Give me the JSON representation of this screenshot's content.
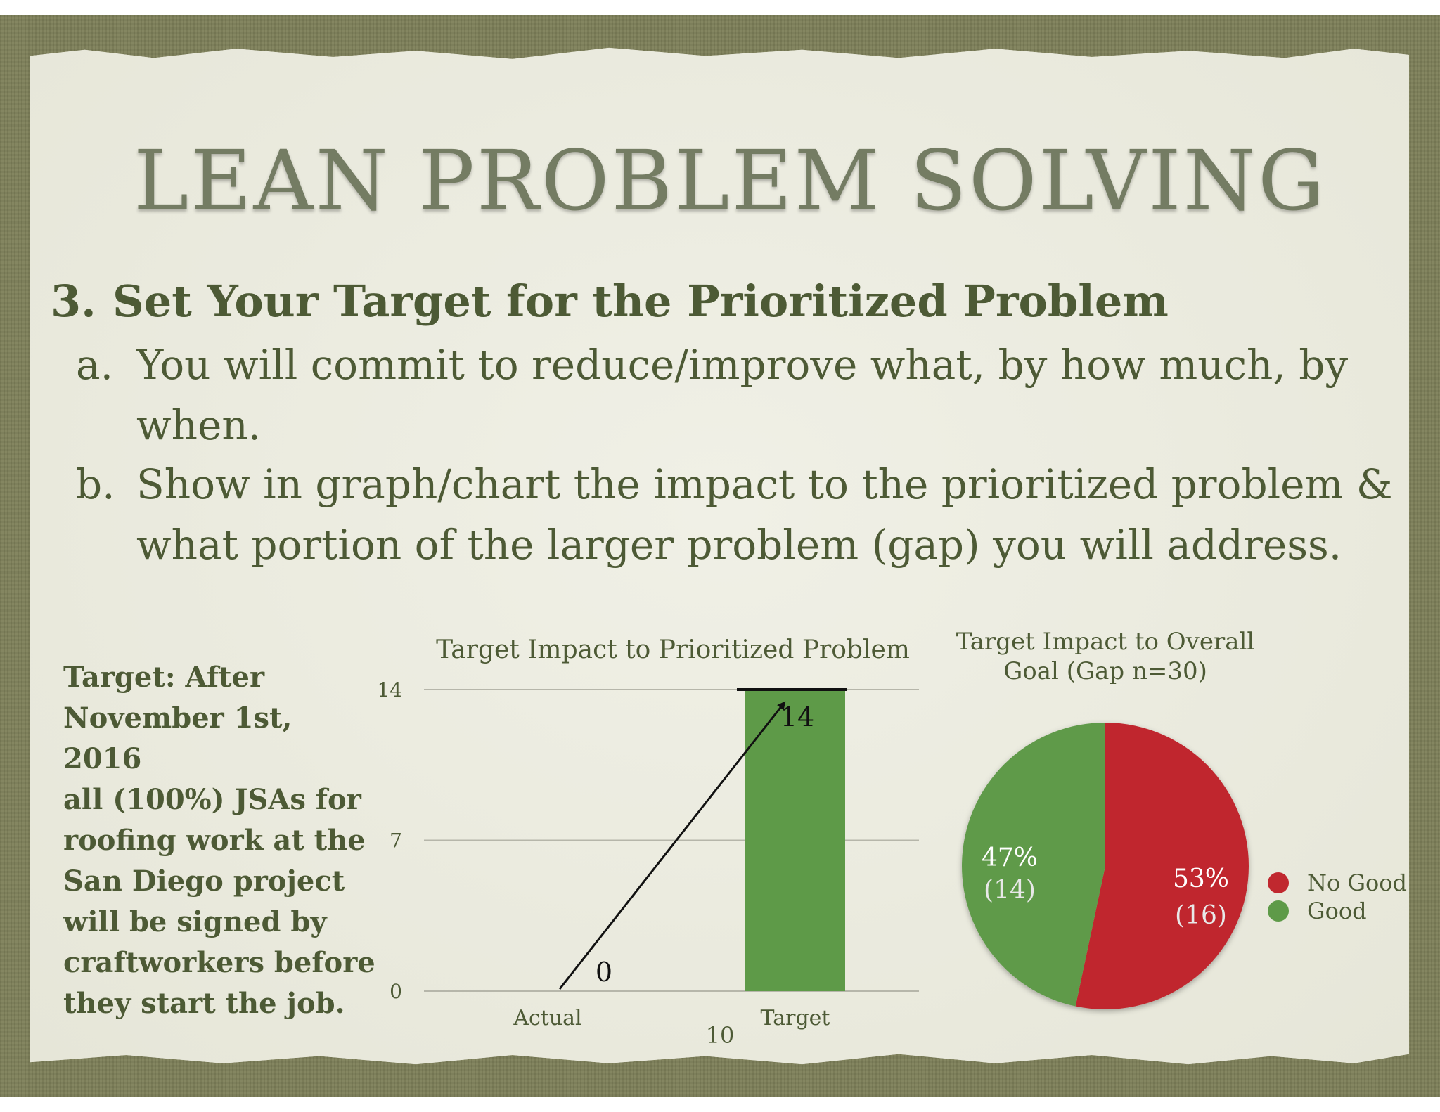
{
  "slide": {
    "title": "LEAN PROBLEM SOLVING",
    "heading_number": "3.",
    "heading_text": "Set Your Target for the Prioritized Problem",
    "items": [
      {
        "label": "a.",
        "line1": "You will commit to reduce/improve what, by how much, by",
        "line2": "when."
      },
      {
        "label": "b.",
        "line1": "Show in graph/chart the impact to the prioritized problem &",
        "line2": "what portion of the larger problem (gap) you will address."
      }
    ],
    "target_lines": [
      "Target:  After",
      "November 1st, 2016",
      "all (100%) JSAs for",
      "roofing work at the",
      "San Diego project",
      "will be signed by",
      "craftworkers before",
      "they start the job."
    ],
    "page_number": "10"
  },
  "chart_data": [
    {
      "type": "bar",
      "title": "Target Impact to Prioritized Problem",
      "categories": [
        "Actual",
        "Target"
      ],
      "values": [
        0,
        14
      ],
      "data_labels": [
        "0",
        "14"
      ],
      "ylim": [
        0,
        14
      ],
      "yticks": [
        "0",
        "7",
        "14"
      ],
      "grid": true,
      "bar_color": "#5e9a48",
      "annotation": "arrow from Actual value rising to Target value"
    },
    {
      "type": "pie",
      "title_lines": [
        "Target Impact to Overall",
        "Goal (Gap n=30)"
      ],
      "slices": [
        {
          "name": "No Good",
          "value": 16,
          "percent": "53%",
          "count_label": "(16)",
          "color": "#c0282f"
        },
        {
          "name": "Good",
          "value": 14,
          "percent": "47%",
          "count_label": "(14)",
          "color": "#5e9a48"
        }
      ],
      "legend_position": "right"
    }
  ]
}
